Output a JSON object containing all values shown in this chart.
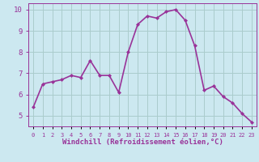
{
  "x": [
    0,
    1,
    2,
    3,
    4,
    5,
    6,
    7,
    8,
    9,
    10,
    11,
    12,
    13,
    14,
    15,
    16,
    17,
    18,
    19,
    20,
    21,
    22,
    23
  ],
  "y": [
    5.4,
    6.5,
    6.6,
    6.7,
    6.9,
    6.8,
    7.6,
    6.9,
    6.9,
    6.1,
    8.0,
    9.3,
    9.7,
    9.6,
    9.9,
    10.0,
    9.5,
    8.3,
    6.2,
    6.4,
    5.9,
    5.6,
    5.1,
    4.7
  ],
  "xlabel": "Windchill (Refroidissement éolien,°C)",
  "ylim": [
    4.5,
    10.3
  ],
  "xlim": [
    -0.5,
    23.5
  ],
  "yticks": [
    5,
    6,
    7,
    8,
    9,
    10
  ],
  "xtick_labels": [
    "0",
    "1",
    "2",
    "3",
    "4",
    "5",
    "6",
    "7",
    "8",
    "9",
    "10",
    "11",
    "12",
    "13",
    "14",
    "15",
    "16",
    "17",
    "18",
    "19",
    "20",
    "21",
    "22",
    "23"
  ],
  "line_color": "#993399",
  "marker": "D",
  "marker_size": 2.0,
  "bg_color": "#cce8f0",
  "grid_color": "#aacccc",
  "xlabel_color": "#993399",
  "tick_color": "#993399",
  "line_width": 1.2,
  "ytick_fontsize": 6.5,
  "xtick_fontsize": 5.0,
  "xlabel_fontsize": 6.5
}
